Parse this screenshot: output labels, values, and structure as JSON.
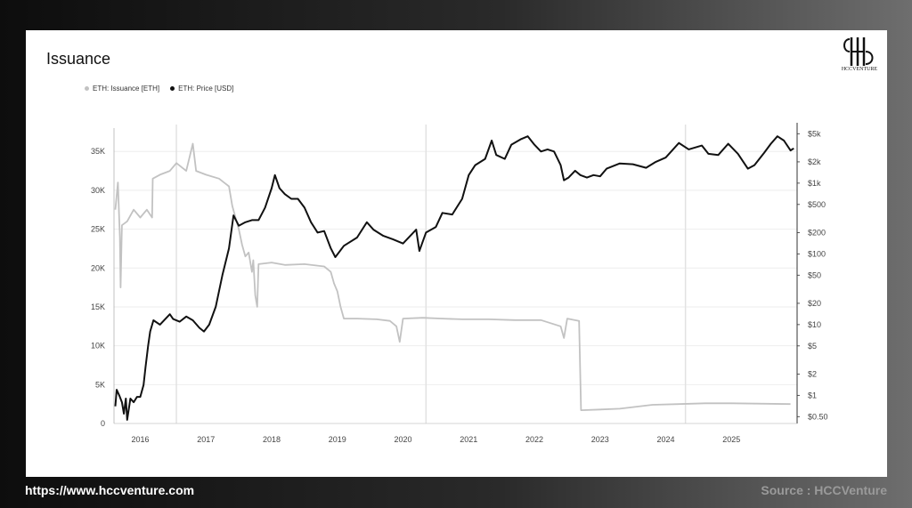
{
  "footer": {
    "website": "https://www.hccventure.com",
    "source": "Source : HCCVenture"
  },
  "logo": {
    "text": "HCCVENTURE",
    "icon": "hcc-logo-icon"
  },
  "colors": {
    "issuance": "#c2c2c2",
    "price": "#111111"
  },
  "chart_data": {
    "type": "line",
    "title": "Issuance",
    "legend": [
      "ETH: Issuance [ETH]",
      "ETH: Price [USD]"
    ],
    "legend_placement": "top-left",
    "grid": true,
    "x_ticks": [
      "2016",
      "2017",
      "2018",
      "2019",
      "2020",
      "2021",
      "2022",
      "2023",
      "2024",
      "2025"
    ],
    "y_left_ticks": [
      "0",
      "5K",
      "10K",
      "15K",
      "20K",
      "25K",
      "30K",
      "35K"
    ],
    "y_left_range": [
      0,
      38000
    ],
    "y_right_ticks": [
      "$0.50",
      "$1",
      "$2",
      "$5",
      "$10",
      "$20",
      "$50",
      "$100",
      "$200",
      "$500",
      "$1k",
      "$2k",
      "$5k"
    ],
    "y_right_scale": "log",
    "y_right_range": [
      0.4,
      6000
    ],
    "x_range": [
      2015.6,
      2026.0
    ],
    "series": [
      {
        "name": "ETH: Issuance [ETH]",
        "axis": "left",
        "points": [
          [
            2015.62,
            27500
          ],
          [
            2015.66,
            31000
          ],
          [
            2015.69,
            24000
          ],
          [
            2015.7,
            17500
          ],
          [
            2015.72,
            25500
          ],
          [
            2015.8,
            26000
          ],
          [
            2015.9,
            27500
          ],
          [
            2016.0,
            26500
          ],
          [
            2016.1,
            27500
          ],
          [
            2016.18,
            26500
          ],
          [
            2016.19,
            31500
          ],
          [
            2016.3,
            32000
          ],
          [
            2016.45,
            32500
          ],
          [
            2016.55,
            33500
          ],
          [
            2016.7,
            32500
          ],
          [
            2016.8,
            36000
          ],
          [
            2016.85,
            32500
          ],
          [
            2017.0,
            32000
          ],
          [
            2017.2,
            31500
          ],
          [
            2017.35,
            30500
          ],
          [
            2017.4,
            28000
          ],
          [
            2017.45,
            26500
          ],
          [
            2017.5,
            25000
          ],
          [
            2017.55,
            23000
          ],
          [
            2017.6,
            21500
          ],
          [
            2017.65,
            22000
          ],
          [
            2017.7,
            19500
          ],
          [
            2017.72,
            21000
          ],
          [
            2017.75,
            16500
          ],
          [
            2017.78,
            15000
          ],
          [
            2017.8,
            20500
          ],
          [
            2018.0,
            20700
          ],
          [
            2018.2,
            20400
          ],
          [
            2018.5,
            20500
          ],
          [
            2018.8,
            20200
          ],
          [
            2018.9,
            19500
          ],
          [
            2018.95,
            18000
          ],
          [
            2019.0,
            17000
          ],
          [
            2019.05,
            15000
          ],
          [
            2019.1,
            13500
          ],
          [
            2019.3,
            13500
          ],
          [
            2019.6,
            13400
          ],
          [
            2019.8,
            13200
          ],
          [
            2019.9,
            12500
          ],
          [
            2019.95,
            10500
          ],
          [
            2020.0,
            13500
          ],
          [
            2020.3,
            13600
          ],
          [
            2020.6,
            13500
          ],
          [
            2020.9,
            13400
          ],
          [
            2021.3,
            13400
          ],
          [
            2021.7,
            13300
          ],
          [
            2022.1,
            13300
          ],
          [
            2022.4,
            12500
          ],
          [
            2022.45,
            11000
          ],
          [
            2022.5,
            13500
          ],
          [
            2022.68,
            13200
          ],
          [
            2022.71,
            1700
          ],
          [
            2023.0,
            1800
          ],
          [
            2023.3,
            1900
          ],
          [
            2023.8,
            2400
          ],
          [
            2024.2,
            2500
          ],
          [
            2024.6,
            2600
          ],
          [
            2025.0,
            2600
          ],
          [
            2025.4,
            2550
          ],
          [
            2025.9,
            2500
          ]
        ]
      },
      {
        "name": "ETH: Price [USD]",
        "axis": "right",
        "points": [
          [
            2015.62,
            0.7
          ],
          [
            2015.64,
            1.2
          ],
          [
            2015.68,
            1.0
          ],
          [
            2015.72,
            0.8
          ],
          [
            2015.75,
            0.55
          ],
          [
            2015.78,
            0.9
          ],
          [
            2015.8,
            0.45
          ],
          [
            2015.85,
            0.9
          ],
          [
            2015.9,
            0.8
          ],
          [
            2015.95,
            0.95
          ],
          [
            2016.0,
            0.95
          ],
          [
            2016.05,
            1.4
          ],
          [
            2016.08,
            2.5
          ],
          [
            2016.12,
            5.0
          ],
          [
            2016.15,
            8.0
          ],
          [
            2016.2,
            11.5
          ],
          [
            2016.3,
            10.0
          ],
          [
            2016.45,
            14.0
          ],
          [
            2016.5,
            12.0
          ],
          [
            2016.6,
            11.0
          ],
          [
            2016.7,
            13.0
          ],
          [
            2016.8,
            11.5
          ],
          [
            2016.9,
            9.0
          ],
          [
            2016.97,
            8.0
          ],
          [
            2017.05,
            10.0
          ],
          [
            2017.15,
            18.0
          ],
          [
            2017.25,
            50.0
          ],
          [
            2017.35,
            120.0
          ],
          [
            2017.42,
            350.0
          ],
          [
            2017.5,
            250.0
          ],
          [
            2017.6,
            280.0
          ],
          [
            2017.7,
            300.0
          ],
          [
            2017.8,
            300.0
          ],
          [
            2017.9,
            450.0
          ],
          [
            2018.0,
            850.0
          ],
          [
            2018.05,
            1300.0
          ],
          [
            2018.12,
            850.0
          ],
          [
            2018.2,
            700.0
          ],
          [
            2018.3,
            600.0
          ],
          [
            2018.4,
            600.0
          ],
          [
            2018.5,
            450.0
          ],
          [
            2018.6,
            280.0
          ],
          [
            2018.7,
            200.0
          ],
          [
            2018.8,
            210.0
          ],
          [
            2018.9,
            120.0
          ],
          [
            2018.97,
            90.0
          ],
          [
            2019.1,
            130.0
          ],
          [
            2019.3,
            170.0
          ],
          [
            2019.45,
            280.0
          ],
          [
            2019.55,
            220.0
          ],
          [
            2019.7,
            180.0
          ],
          [
            2019.85,
            160.0
          ],
          [
            2020.0,
            140.0
          ],
          [
            2020.2,
            220.0
          ],
          [
            2020.25,
            110.0
          ],
          [
            2020.35,
            200.0
          ],
          [
            2020.5,
            240.0
          ],
          [
            2020.6,
            380.0
          ],
          [
            2020.75,
            360.0
          ],
          [
            2020.9,
            600.0
          ],
          [
            2021.0,
            1300.0
          ],
          [
            2021.1,
            1800.0
          ],
          [
            2021.25,
            2200.0
          ],
          [
            2021.35,
            4000.0
          ],
          [
            2021.42,
            2500.0
          ],
          [
            2021.55,
            2200.0
          ],
          [
            2021.65,
            3500.0
          ],
          [
            2021.8,
            4200.0
          ],
          [
            2021.9,
            4600.0
          ],
          [
            2022.0,
            3500.0
          ],
          [
            2022.1,
            2800.0
          ],
          [
            2022.2,
            3000.0
          ],
          [
            2022.3,
            2800.0
          ],
          [
            2022.4,
            1800.0
          ],
          [
            2022.45,
            1100.0
          ],
          [
            2022.52,
            1200.0
          ],
          [
            2022.62,
            1500.0
          ],
          [
            2022.7,
            1300.0
          ],
          [
            2022.8,
            1200.0
          ],
          [
            2022.9,
            1300.0
          ],
          [
            2023.0,
            1250.0
          ],
          [
            2023.1,
            1600.0
          ],
          [
            2023.3,
            1900.0
          ],
          [
            2023.5,
            1850.0
          ],
          [
            2023.7,
            1650.0
          ],
          [
            2023.85,
            2000.0
          ],
          [
            2024.0,
            2300.0
          ],
          [
            2024.2,
            3700.0
          ],
          [
            2024.35,
            3000.0
          ],
          [
            2024.55,
            3400.0
          ],
          [
            2024.65,
            2600.0
          ],
          [
            2024.8,
            2500.0
          ],
          [
            2024.95,
            3600.0
          ],
          [
            2025.1,
            2600.0
          ],
          [
            2025.25,
            1600.0
          ],
          [
            2025.35,
            1800.0
          ],
          [
            2025.5,
            2700.0
          ],
          [
            2025.6,
            3600.0
          ],
          [
            2025.7,
            4600.0
          ],
          [
            2025.8,
            4000.0
          ],
          [
            2025.9,
            2900.0
          ],
          [
            2025.95,
            3100.0
          ]
        ]
      }
    ]
  }
}
